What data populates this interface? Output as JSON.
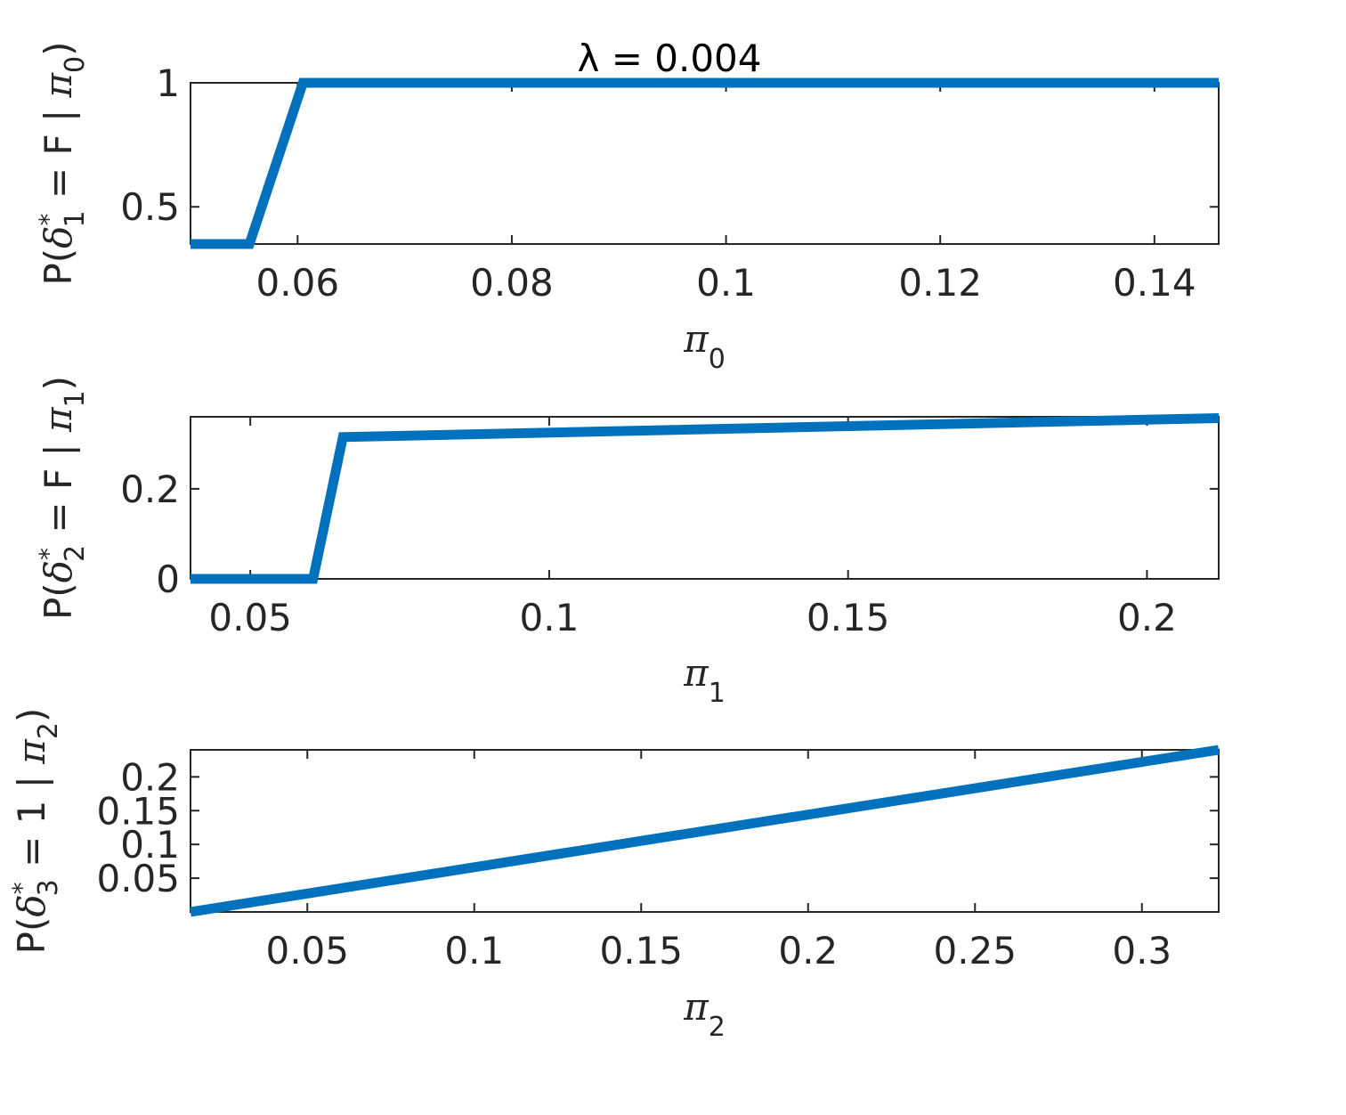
{
  "figure_title": "λ = 0.004",
  "line_color": "#0072BD",
  "chart_data": [
    {
      "type": "line",
      "xlabel": {
        "base": "π",
        "sub": "0"
      },
      "ylabel": {
        "pre": "P(",
        "delta": "δ",
        "sup": "*",
        "sub": "1",
        "mid": " = F | ",
        "pi": "π",
        "pisub": "0",
        "post": ")"
      },
      "xlim": [
        0.05,
        0.146
      ],
      "ylim": [
        0.35,
        1.0
      ],
      "xticks": [
        0.06,
        0.08,
        0.1,
        0.12,
        0.14
      ],
      "xtick_labels": [
        "0.06",
        "0.08",
        "0.1",
        "0.12",
        "0.14"
      ],
      "yticks": [
        0.5,
        1.0
      ],
      "ytick_labels": [
        "0.5",
        "1"
      ],
      "grid": false,
      "series": [
        {
          "x": [
            0.05,
            0.0555,
            0.0605,
            0.146
          ],
          "y": [
            0.35,
            0.35,
            1.0,
            1.0
          ]
        }
      ]
    },
    {
      "type": "line",
      "xlabel": {
        "base": "π",
        "sub": "1"
      },
      "ylabel": {
        "pre": "P(",
        "delta": "δ",
        "sup": "*",
        "sub": "2",
        "mid": " = F | ",
        "pi": "π",
        "pisub": "1",
        "post": ")"
      },
      "xlim": [
        0.04,
        0.212
      ],
      "ylim": [
        0,
        0.36
      ],
      "xticks": [
        0.05,
        0.1,
        0.15,
        0.2
      ],
      "xtick_labels": [
        "0.05",
        "0.1",
        "0.15",
        "0.2"
      ],
      "yticks": [
        0,
        0.2
      ],
      "ytick_labels": [
        "0",
        "0.2"
      ],
      "grid": false,
      "series": [
        {
          "x": [
            0.04,
            0.0605,
            0.0655,
            0.212
          ],
          "y": [
            0,
            0,
            0.315,
            0.357
          ]
        }
      ]
    },
    {
      "type": "line",
      "xlabel": {
        "base": "π",
        "sub": "2"
      },
      "ylabel": {
        "pre": "P(",
        "delta": "δ",
        "sup": "*",
        "sub": "3",
        "mid": " = 1 | ",
        "pi": "π",
        "pisub": "2",
        "post": ")"
      },
      "xlim": [
        0.015,
        0.323
      ],
      "ylim": [
        0.0,
        0.24
      ],
      "xticks": [
        0.05,
        0.1,
        0.15,
        0.2,
        0.25,
        0.3
      ],
      "xtick_labels": [
        "0.05",
        "0.1",
        "0.15",
        "0.2",
        "0.25",
        "0.3"
      ],
      "yticks": [
        0.05,
        0.1,
        0.15,
        0.2
      ],
      "ytick_labels": [
        "0.05",
        "0.1",
        "0.15",
        "0.2"
      ],
      "grid": false,
      "series": [
        {
          "x": [
            0.015,
            0.323
          ],
          "y": [
            0.0,
            0.24
          ]
        }
      ]
    }
  ]
}
